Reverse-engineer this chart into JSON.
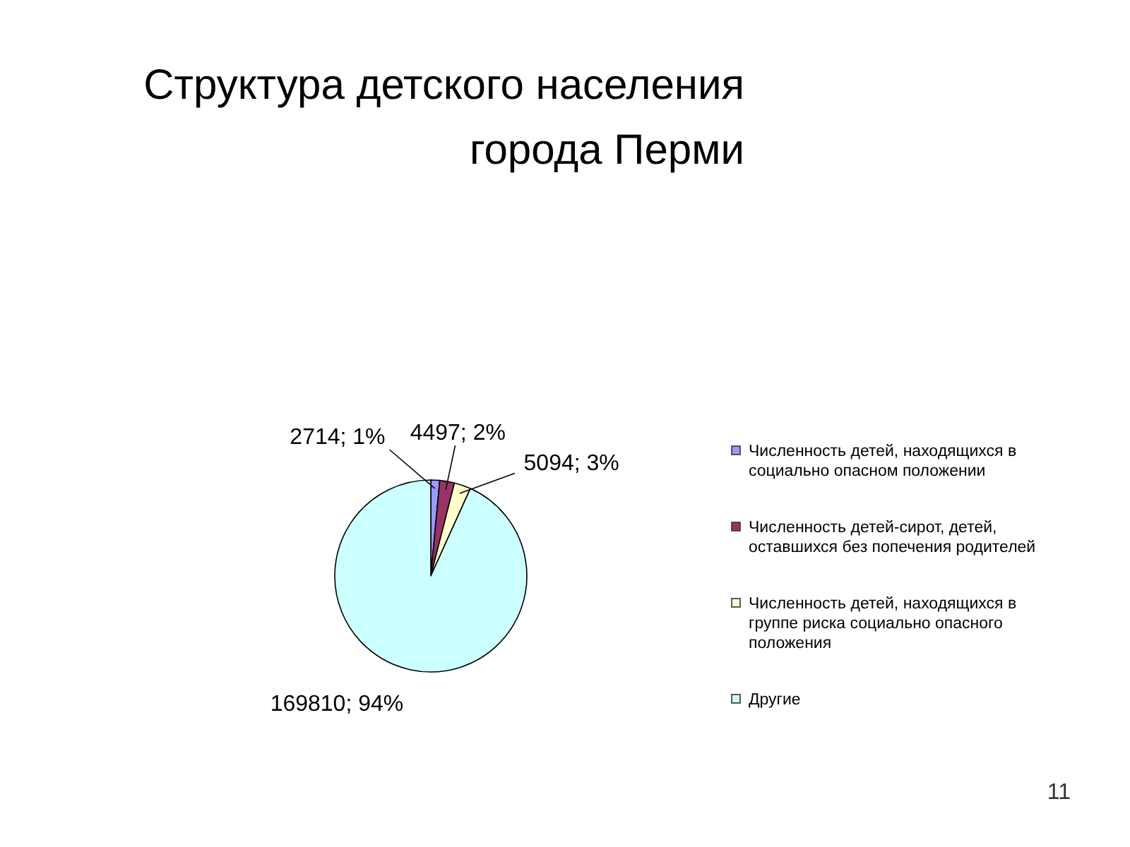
{
  "chart_data": {
    "type": "pie",
    "title": "Структура детского населения города Перми",
    "categories": [
      "Численность детей, находящихся в социально опасном положении",
      "Численность детей-сирот, детей, оставшихся без попечения родителей",
      "Численность детей, находящихся в группе риска социально опасного положения",
      "Другие"
    ],
    "values": [
      2714,
      4497,
      5094,
      169810
    ],
    "colors": [
      "#9999ff",
      "#993366",
      "#ffffcc",
      "#ccffff"
    ],
    "value_labels": [
      "2714; 1%",
      "4497; 2%",
      "5094; 3%",
      "169810; 94%"
    ],
    "legend": "right",
    "annotations": [
      "11"
    ]
  }
}
